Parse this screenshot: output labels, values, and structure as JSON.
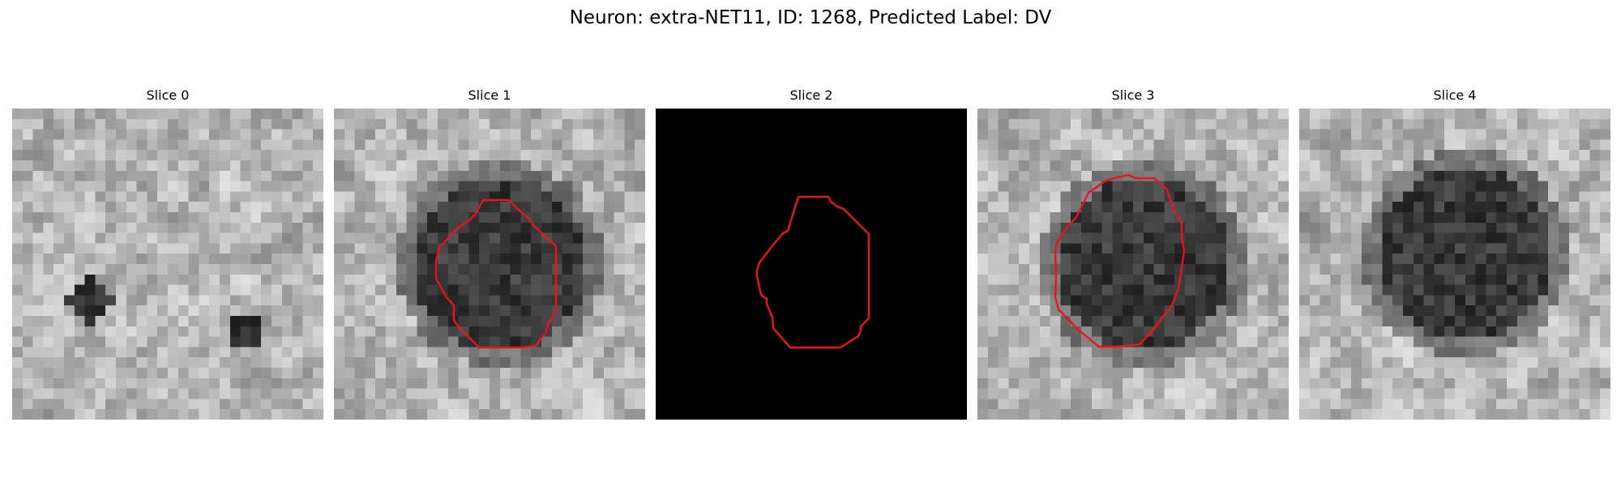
{
  "figure": {
    "title": "Neuron: extra-NET11, ID: 1268, Predicted Label: DV"
  },
  "colors": {
    "outline": "#e8161b",
    "background": "#ffffff",
    "black_slice": "#000000"
  },
  "panels": [
    {
      "title": "Slice 0",
      "style": "texture",
      "seed": 11,
      "blob": false,
      "outline": false
    },
    {
      "title": "Slice 1",
      "style": "texture",
      "seed": 23,
      "blob": true,
      "outline": true
    },
    {
      "title": "Slice 2",
      "style": "black",
      "seed": 0,
      "blob": false,
      "outline": true
    },
    {
      "title": "Slice 3",
      "style": "texture",
      "seed": 37,
      "blob": true,
      "outline": true
    },
    {
      "title": "Slice 4",
      "style": "texture",
      "seed": 51,
      "blob": true,
      "outline": false
    }
  ]
}
